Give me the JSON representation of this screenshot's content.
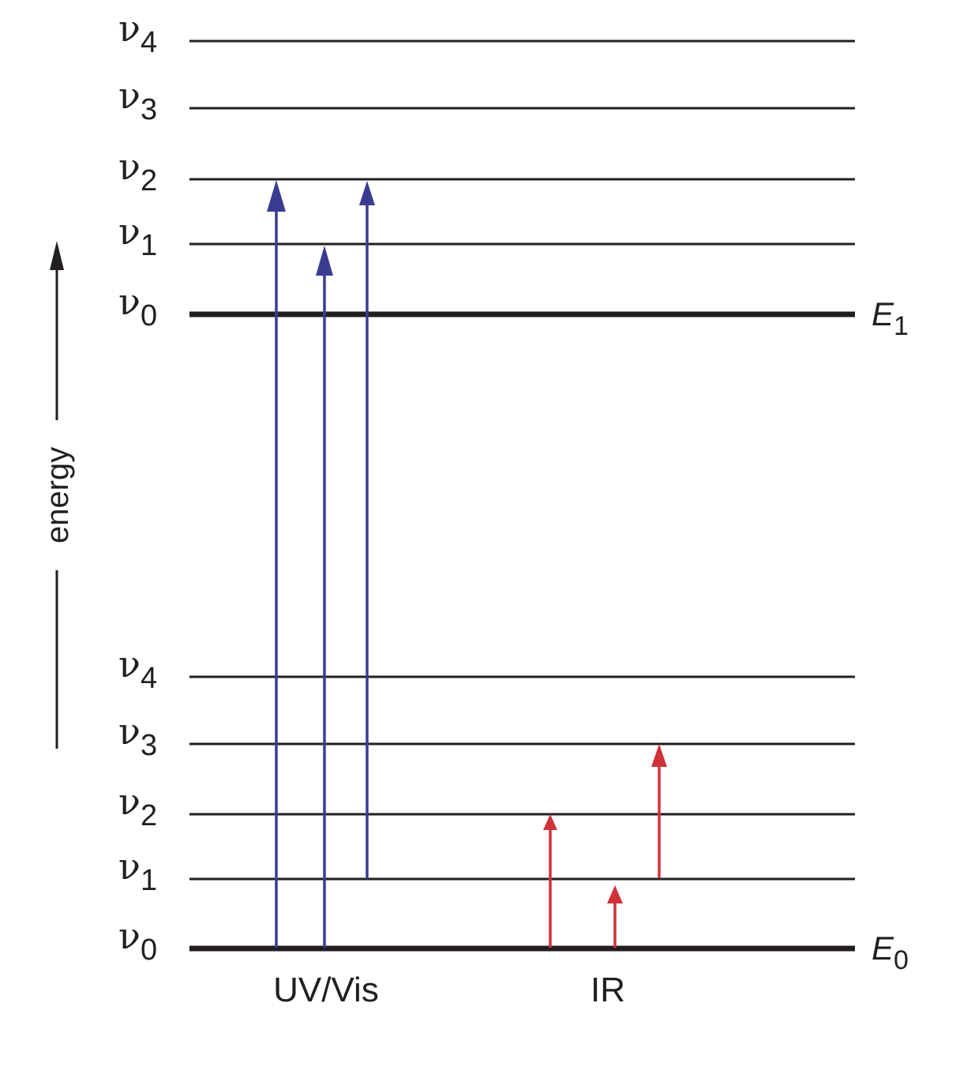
{
  "axis": {
    "label": "energy"
  },
  "level_symbol": "ν",
  "states": [
    {
      "name": "E",
      "sub": "1",
      "levels": [
        "0",
        "1",
        "2",
        "3",
        "4"
      ]
    },
    {
      "name": "E",
      "sub": "0",
      "levels": [
        "0",
        "1",
        "2",
        "3",
        "4"
      ]
    }
  ],
  "regions": [
    {
      "label": "UV/Vis",
      "color": "#3a3c92"
    },
    {
      "label": "IR",
      "color": "#d1323a"
    }
  ],
  "transitions": [
    {
      "region": 0,
      "from": "E0 v0",
      "to": "E1 v2"
    },
    {
      "region": 0,
      "from": "E0 v0",
      "to": "E1 v1"
    },
    {
      "region": 0,
      "from": "E0 v1",
      "to": "E1 v2"
    },
    {
      "region": 1,
      "from": "E0 v0",
      "to": "E0 v2"
    },
    {
      "region": 1,
      "from": "E0 v0",
      "to": "E0 v1"
    },
    {
      "region": 1,
      "from": "E0 v1",
      "to": "E0 v3"
    }
  ]
}
